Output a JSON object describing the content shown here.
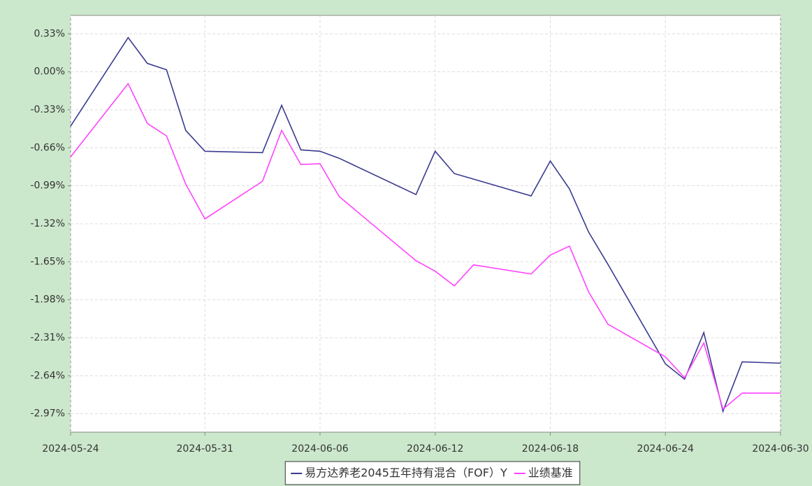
{
  "chart_data": {
    "type": "line",
    "x": [
      "2024-05-24",
      "2024-05-27",
      "2024-05-28",
      "2024-05-29",
      "2024-05-30",
      "2024-05-31",
      "2024-06-03",
      "2024-06-04",
      "2024-06-05",
      "2024-06-06",
      "2024-06-07",
      "2024-06-11",
      "2024-06-12",
      "2024-06-13",
      "2024-06-14",
      "2024-06-17",
      "2024-06-18",
      "2024-06-19",
      "2024-06-20",
      "2024-06-21",
      "2024-06-24",
      "2024-06-25",
      "2024-06-26",
      "2024-06-27",
      "2024-06-28",
      "2024-06-30"
    ],
    "series": [
      {
        "name": "易方达养老2045五年持有混合（FOF）Y",
        "color": "#3b3b8f",
        "values": [
          -0.472,
          0.297,
          0.073,
          0.018,
          -0.509,
          -0.69,
          -0.702,
          -0.291,
          -0.678,
          -0.69,
          -0.751,
          -1.066,
          -0.69,
          -0.884,
          -0.932,
          -1.078,
          -0.775,
          -1.017,
          -1.393,
          -1.671,
          -2.537,
          -2.67,
          -2.265,
          -2.949,
          -2.519,
          -2.531
        ]
      },
      {
        "name": "业绩基准",
        "color": "#ff44ff",
        "values": [
          -0.739,
          -0.103,
          -0.448,
          -0.557,
          -0.975,
          -1.278,
          -0.951,
          -0.509,
          -0.805,
          -0.799,
          -1.084,
          -1.641,
          -1.732,
          -1.859,
          -1.677,
          -1.756,
          -1.592,
          -1.514,
          -1.913,
          -2.192,
          -2.476,
          -2.657,
          -2.355,
          -2.93,
          -2.791,
          -2.791
        ]
      }
    ],
    "xlim": [
      "2024-05-24",
      "2024-06-30"
    ],
    "xticks": [
      "2024-05-24",
      "2024-05-31",
      "2024-06-06",
      "2024-06-12",
      "2024-06-18",
      "2024-06-24",
      "2024-06-30"
    ],
    "ylim": [
      -3.13,
      0.49
    ],
    "yticks": [
      {
        "value": 0.33,
        "label": "0.33%"
      },
      {
        "value": 0,
        "label": "0.00%"
      },
      {
        "value": -0.33,
        "label": "-0.33%"
      },
      {
        "value": -0.66,
        "label": "-0.66%"
      },
      {
        "value": -0.99,
        "label": "-0.99%"
      },
      {
        "value": -1.32,
        "label": "-1.32%"
      },
      {
        "value": -1.65,
        "label": "-1.65%"
      },
      {
        "value": -1.98,
        "label": "-1.98%"
      },
      {
        "value": -2.31,
        "label": "-2.31%"
      },
      {
        "value": -2.64,
        "label": "-2.64%"
      },
      {
        "value": -2.97,
        "label": "-2.97%"
      }
    ],
    "grid": true,
    "legend": "bottom"
  }
}
